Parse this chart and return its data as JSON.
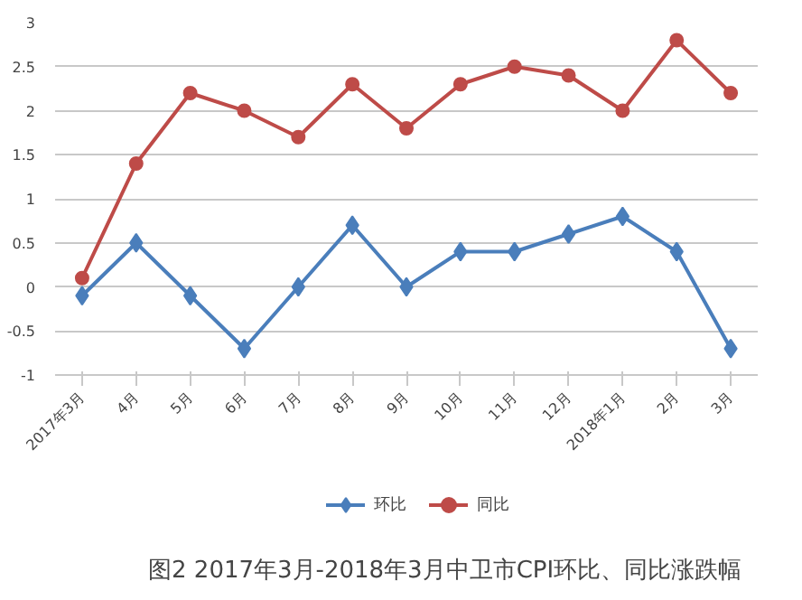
{
  "chart_data": {
    "type": "line",
    "title": "图2    2017年3月-2018年3月中卫市CPI环比、同比涨跌幅",
    "categories": [
      "2017年3月",
      "4月",
      "5月",
      "6月",
      "7月",
      "8月",
      "9月",
      "10月",
      "11月",
      "12月",
      "2018年1月",
      "2月",
      "3月"
    ],
    "series": [
      {
        "name": "环比",
        "color": "#4a7ebb",
        "marker": "diamond",
        "values": [
          -0.1,
          0.5,
          -0.1,
          -0.7,
          0,
          0.7,
          0,
          0.4,
          0.4,
          0.6,
          0.8,
          0.4,
          -0.7
        ]
      },
      {
        "name": "同比",
        "color": "#be4b48",
        "marker": "circle",
        "values": [
          0.1,
          1.4,
          2.2,
          2.0,
          1.7,
          2.3,
          1.8,
          2.3,
          2.5,
          2.4,
          2.0,
          2.8,
          2.2
        ]
      }
    ],
    "ylim": [
      -1,
      3
    ],
    "yticks": [
      -1,
      -0.5,
      0,
      0.5,
      1,
      1.5,
      2,
      2.5,
      3
    ],
    "grid": "y",
    "legend": "bottom",
    "line_style": "solid"
  }
}
